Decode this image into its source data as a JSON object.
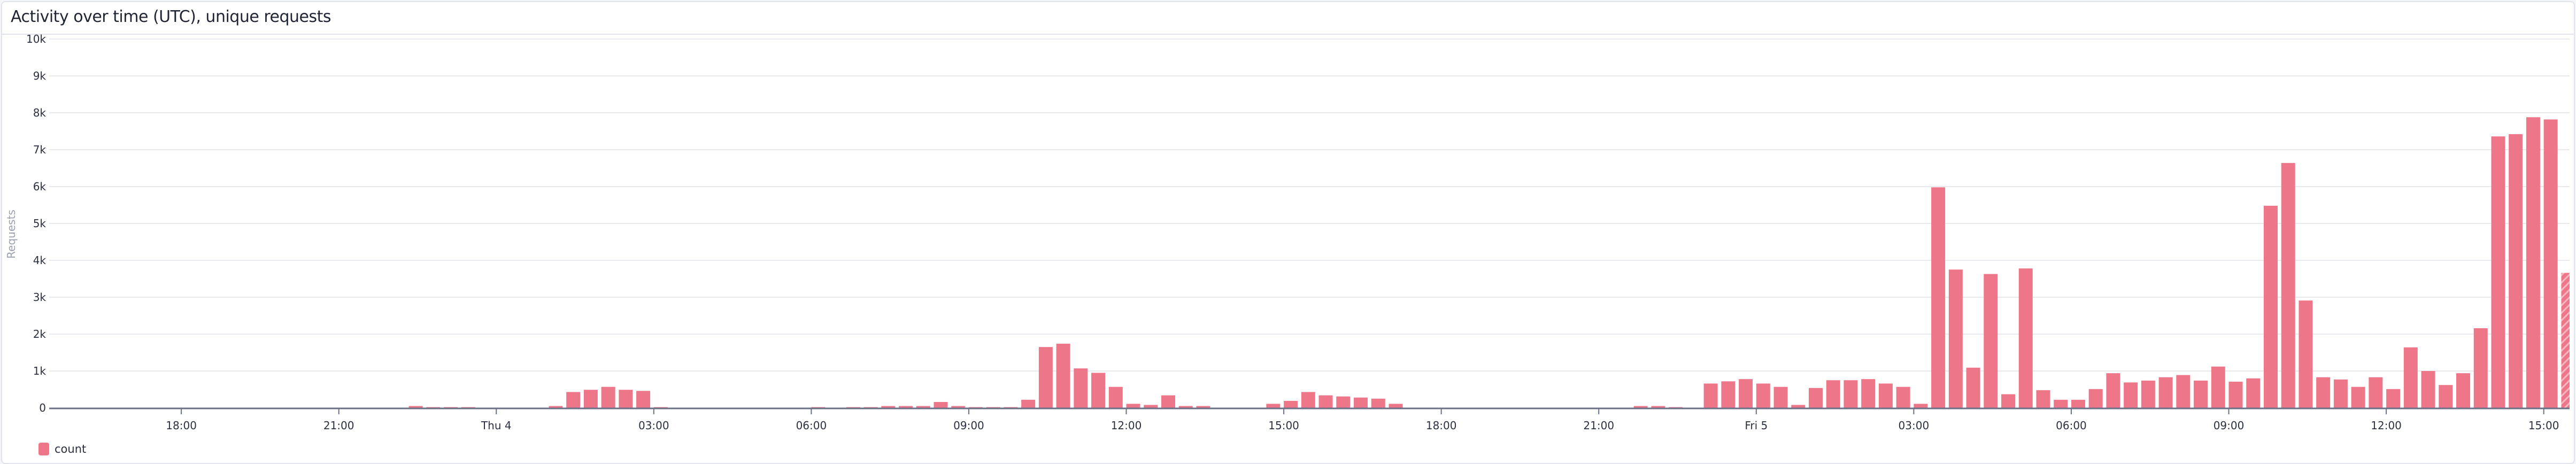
{
  "panel": {
    "title": "Activity over time (UTC), unique requests"
  },
  "chart_data": {
    "type": "bar",
    "title": "Activity over time (UTC), unique requests",
    "ylabel": "Requests",
    "xlabel": "",
    "ylim": [
      0,
      10000
    ],
    "y_ticks": [
      "0",
      "1k",
      "2k",
      "3k",
      "4k",
      "5k",
      "6k",
      "7k",
      "8k",
      "9k",
      "10k"
    ],
    "x_ticks": [
      "18:00",
      "21:00",
      "Thu 4",
      "03:00",
      "06:00",
      "09:00",
      "12:00",
      "15:00",
      "18:00",
      "21:00",
      "Fri 5",
      "03:00",
      "06:00",
      "09:00",
      "12:00",
      "15:00"
    ],
    "x_start": "15:40",
    "interval_minutes": 20,
    "grid": true,
    "legend_position": "bottom-left",
    "last_bar_partial": true,
    "series": [
      {
        "name": "count",
        "color": "#ee7689",
        "values": [
          0,
          0,
          0,
          0,
          0,
          0,
          0,
          0,
          0,
          0,
          0,
          0,
          0,
          0,
          0,
          0,
          0,
          0,
          0,
          0,
          50,
          20,
          20,
          20,
          0,
          0,
          0,
          0,
          50,
          430,
          490,
          570,
          490,
          460,
          20,
          0,
          0,
          0,
          0,
          0,
          0,
          0,
          0,
          20,
          0,
          20,
          20,
          50,
          50,
          50,
          160,
          50,
          20,
          20,
          20,
          220,
          1650,
          1740,
          1070,
          950,
          570,
          110,
          80,
          340,
          50,
          50,
          0,
          0,
          0,
          110,
          190,
          430,
          340,
          310,
          280,
          250,
          110,
          0,
          0,
          0,
          0,
          0,
          0,
          0,
          0,
          0,
          0,
          0,
          0,
          0,
          50,
          50,
          20,
          0,
          660,
          720,
          780,
          660,
          570,
          80,
          540,
          750,
          750,
          780,
          660,
          570,
          110,
          5980,
          3750,
          1090,
          3630,
          370,
          3780,
          480,
          220,
          220,
          510,
          940,
          690,
          740,
          830,
          890,
          740,
          1120,
          710,
          800,
          5480,
          6640,
          2910,
          830,
          770,
          570,
          830,
          510,
          1640,
          1000,
          620,
          940,
          2160,
          7360,
          7420,
          7880,
          7820,
          3660
        ]
      }
    ]
  }
}
